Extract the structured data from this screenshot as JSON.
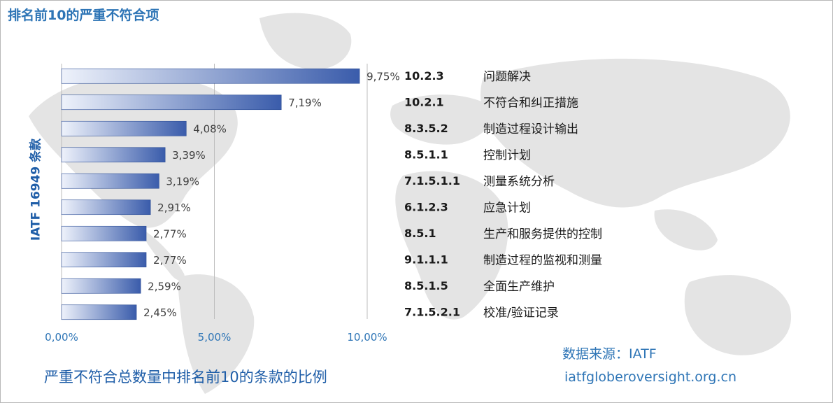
{
  "colors": {
    "title": "#2e75b6",
    "accent_dark": "#1f5ea8",
    "bar_light": "#eef2fb",
    "bar_dark": "#3a5cab",
    "grid": "#bdbdbd",
    "map": "#e3e3e3"
  },
  "header": {
    "title": "排名前10的严重不符合项"
  },
  "footer": {
    "caption": "严重不符合总数量中排名前10的条款的比例",
    "source_label": "数据来源：IATF",
    "source_url": "iatfgloberoversight.org.cn"
  },
  "chart_data": {
    "type": "bar",
    "orientation": "horizontal",
    "title": "排名前10的严重不符合项",
    "ylabel": "IATF 16949 条款",
    "xlabel": "严重不符合总数量中排名前10的条款的比例",
    "xlim": [
      0,
      10
    ],
    "x_ticks": [
      "0,00%",
      "5,00%",
      "10,00%"
    ],
    "grid": true,
    "categories": [
      "10.2.3",
      "10.2.1",
      "8.3.5.2",
      "8.5.1.1",
      "7.1.5.1.1",
      "6.1.2.3",
      "8.5.1",
      "9.1.1.1",
      "8.5.1.5",
      "7.1.5.2.1"
    ],
    "descriptions": [
      "问题解决",
      "不符合和纠正措施",
      "制造过程设计输出",
      "控制计划",
      "测量系统分析",
      "应急计划",
      "生产和服务提供的控制",
      "制造过程的监视和测量",
      "全面生产维护",
      "校准/验证记录"
    ],
    "values": [
      9.75,
      7.19,
      4.08,
      3.39,
      3.19,
      2.91,
      2.77,
      2.77,
      2.59,
      2.45
    ],
    "value_labels": [
      "9,75%",
      "7,19%",
      "4,08%",
      "3,39%",
      "3,19%",
      "2,91%",
      "2,77%",
      "2,77%",
      "2,59%",
      "2,45%"
    ]
  }
}
